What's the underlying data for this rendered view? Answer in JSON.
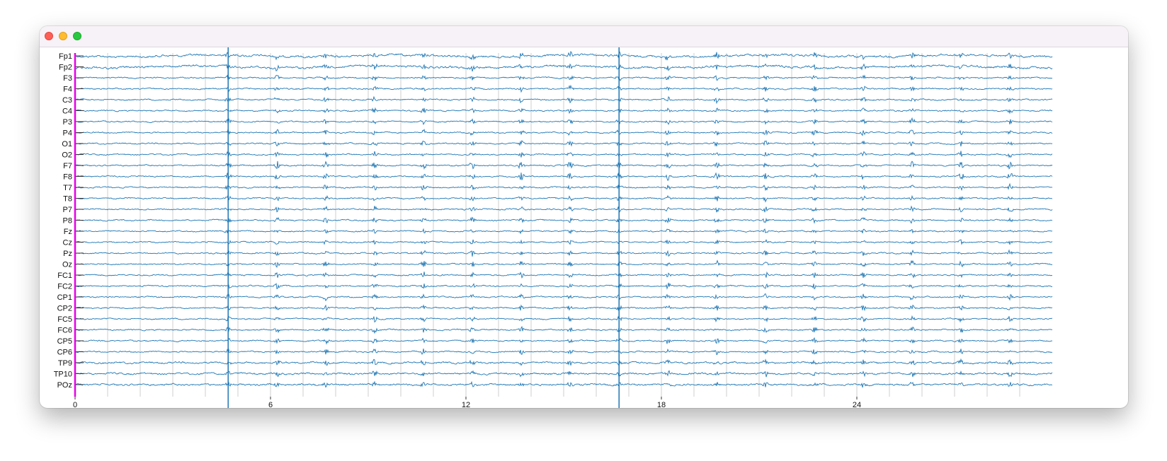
{
  "window": {
    "buttons": [
      "close",
      "minimize",
      "maximize"
    ]
  },
  "chart_data": {
    "type": "line",
    "title": "",
    "xlabel": "",
    "ylabel": "",
    "xlim": [
      0,
      30
    ],
    "x_ticks": [
      0,
      6,
      12,
      18,
      24
    ],
    "channels": [
      "Fp1",
      "Fp2",
      "F3",
      "F4",
      "C3",
      "C4",
      "P3",
      "P4",
      "O1",
      "O2",
      "F7",
      "F8",
      "T7",
      "T8",
      "P7",
      "P8",
      "Fz",
      "Cz",
      "Pz",
      "Oz",
      "FC1",
      "FC2",
      "CP1",
      "CP2",
      "FC5",
      "FC6",
      "CP5",
      "CP6",
      "TP9",
      "TP10",
      "POz"
    ],
    "vertical_grid": true,
    "event_markers": [
      4.7,
      16.7
    ],
    "burst_times": [
      6.2,
      7.7,
      9.2,
      10.7,
      12.2,
      13.7,
      15.2,
      18.2,
      19.7,
      21.2,
      22.7,
      24.2,
      25.7,
      27.2,
      28.7
    ],
    "colors": {
      "trace": "#1f77b4",
      "event_marker": "#1f77b4",
      "left_axis": "#e500e5",
      "grid": "#cfcfcf"
    }
  }
}
